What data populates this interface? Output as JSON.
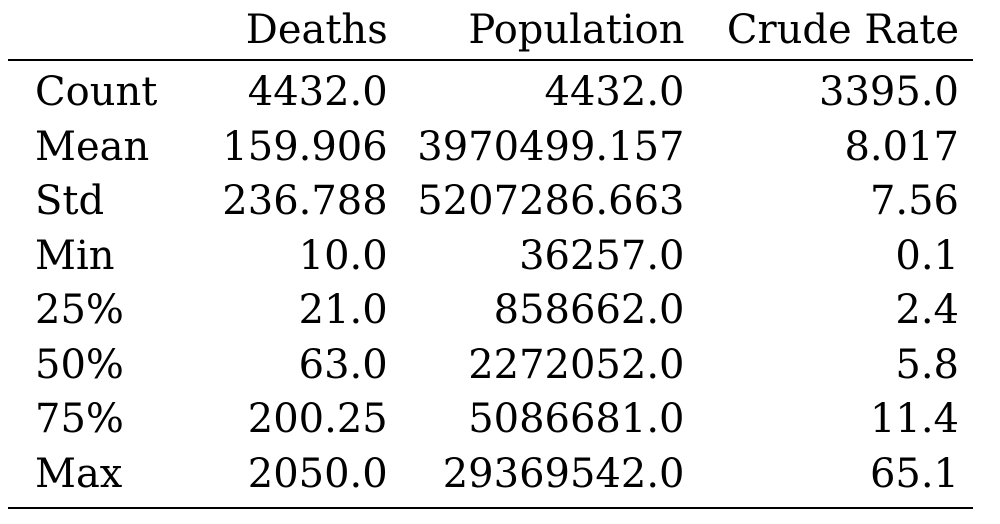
{
  "table": {
    "columns": [
      "",
      "Deaths",
      "Population",
      "Crude Rate"
    ],
    "rows": [
      {
        "label": "Count",
        "deaths": "4432.0",
        "population": "4432.0",
        "crude_rate": "3395.0"
      },
      {
        "label": "Mean",
        "deaths": "159.906",
        "population": "3970499.157",
        "crude_rate": "8.017"
      },
      {
        "label": "Std",
        "deaths": "236.788",
        "population": "5207286.663",
        "crude_rate": "7.56"
      },
      {
        "label": "Min",
        "deaths": "10.0",
        "population": "36257.0",
        "crude_rate": "0.1"
      },
      {
        "label": "25%",
        "deaths": "21.0",
        "population": "858662.0",
        "crude_rate": "2.4"
      },
      {
        "label": "50%",
        "deaths": "63.0",
        "population": "2272052.0",
        "crude_rate": "5.8"
      },
      {
        "label": "75%",
        "deaths": "200.25",
        "population": "5086681.0",
        "crude_rate": "11.4"
      },
      {
        "label": "Max",
        "deaths": "2050.0",
        "population": "29369542.0",
        "crude_rate": "65.1"
      }
    ]
  }
}
